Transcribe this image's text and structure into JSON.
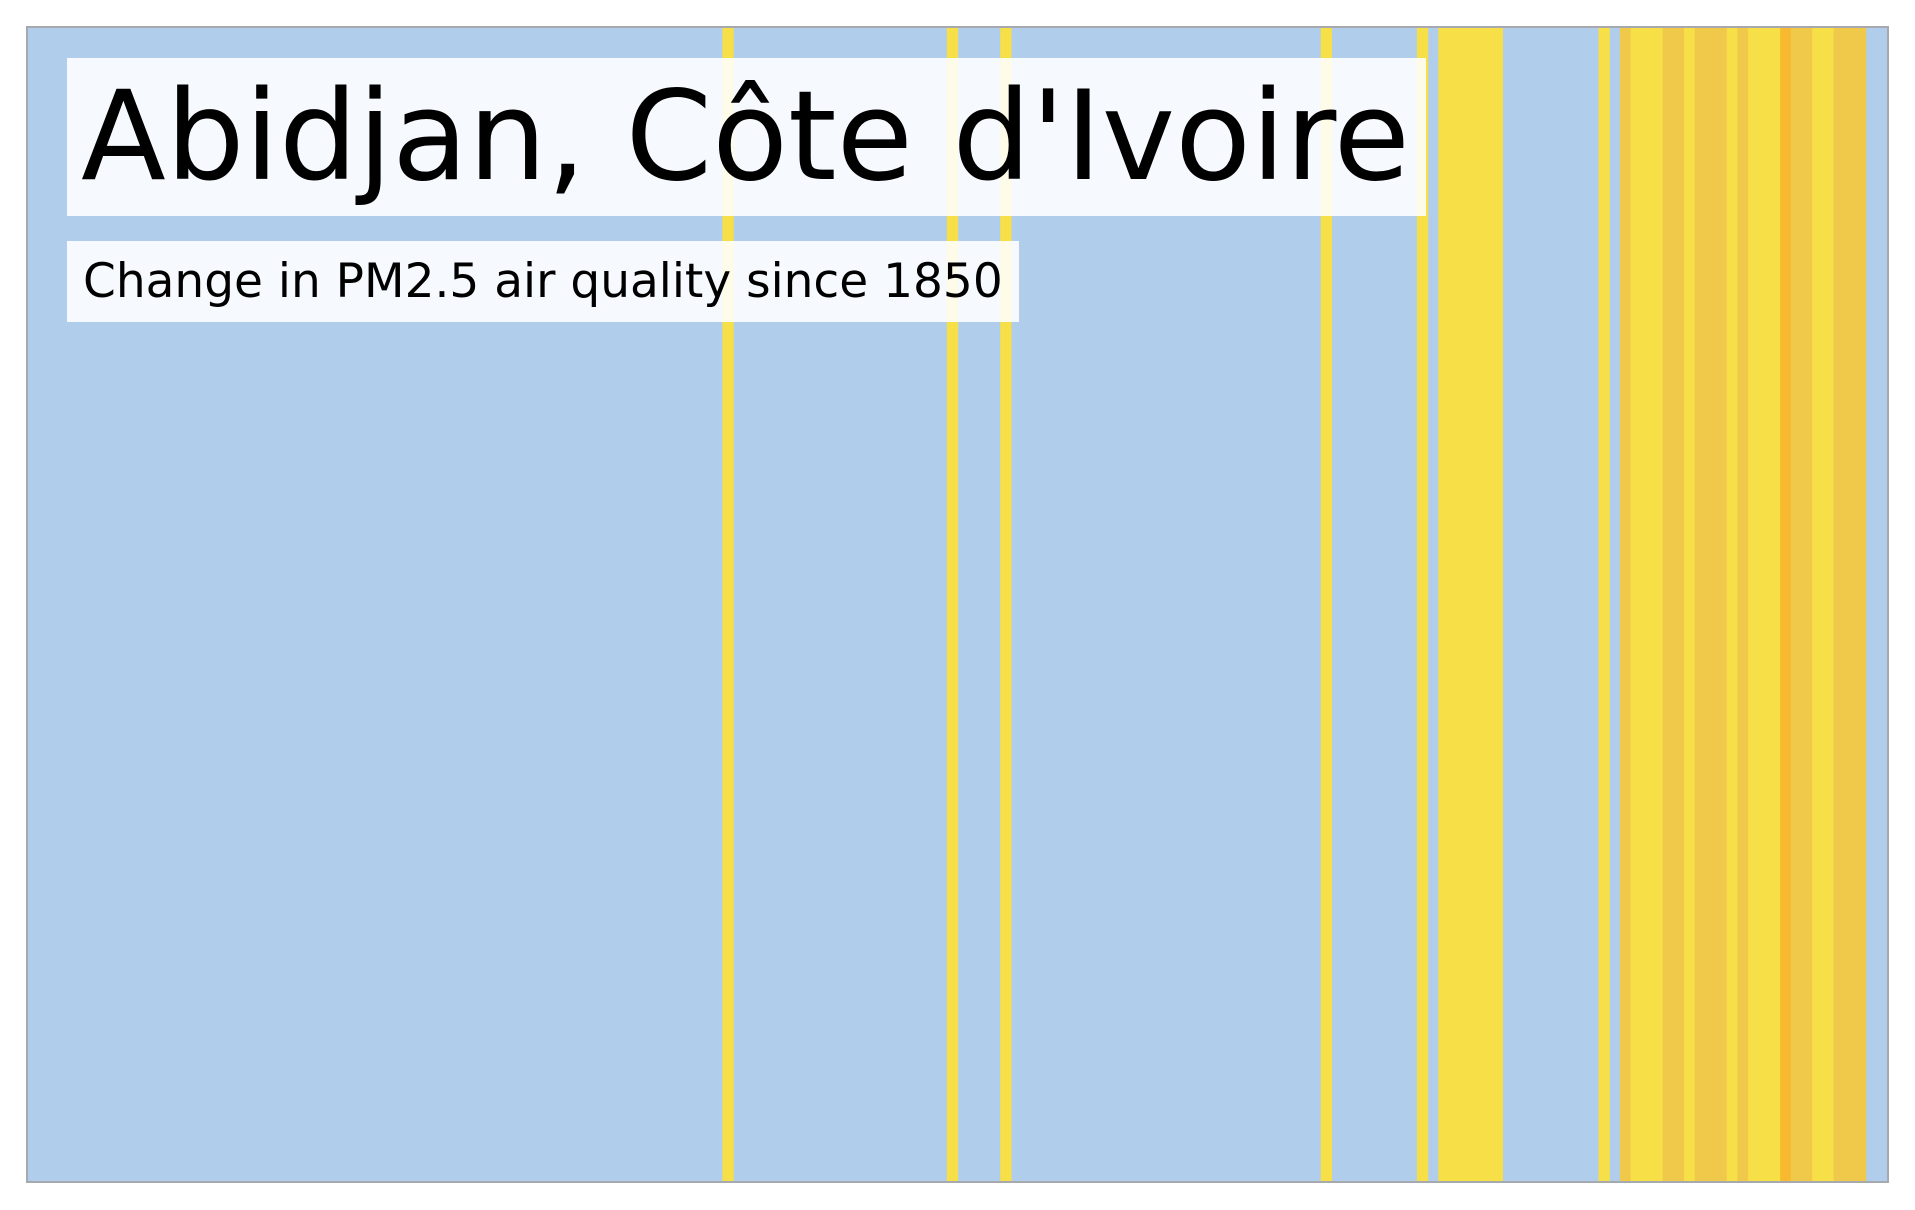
{
  "chart_data": {
    "type": "heatmap",
    "title": "Abidjan, Côte d'Ivoire",
    "subtitle": "Change in PM2.5 air quality since 1850",
    "x_start": 1850,
    "x_end": 2024,
    "colors": {
      "background": "#b0ceec",
      "level_1": "#f7df47",
      "level_2": "#f0c94b",
      "level_3": "#f6b930",
      "frame": "#a6a9ad"
    },
    "stripes": [
      {
        "year": 1915,
        "level": 1
      },
      {
        "year": 1936,
        "level": 1
      },
      {
        "year": 1941,
        "level": 1
      },
      {
        "year": 1971,
        "level": 1
      },
      {
        "year": 1980,
        "level": 1
      },
      {
        "year": 1982,
        "level": 1
      },
      {
        "year": 1983,
        "level": 1
      },
      {
        "year": 1984,
        "level": 1
      },
      {
        "year": 1985,
        "level": 1
      },
      {
        "year": 1986,
        "level": 1
      },
      {
        "year": 1987,
        "level": 1
      },
      {
        "year": 1997,
        "level": 1
      },
      {
        "year": 1999,
        "level": 2
      },
      {
        "year": 2000,
        "level": 1
      },
      {
        "year": 2001,
        "level": 1
      },
      {
        "year": 2002,
        "level": 1
      },
      {
        "year": 2003,
        "level": 2
      },
      {
        "year": 2004,
        "level": 2
      },
      {
        "year": 2005,
        "level": 1
      },
      {
        "year": 2006,
        "level": 2
      },
      {
        "year": 2007,
        "level": 2
      },
      {
        "year": 2008,
        "level": 2
      },
      {
        "year": 2009,
        "level": 1
      },
      {
        "year": 2010,
        "level": 2
      },
      {
        "year": 2011,
        "level": 1
      },
      {
        "year": 2012,
        "level": 1
      },
      {
        "year": 2013,
        "level": 1
      },
      {
        "year": 2014,
        "level": 3
      },
      {
        "year": 2015,
        "level": 2
      },
      {
        "year": 2016,
        "level": 2
      },
      {
        "year": 2017,
        "level": 1
      },
      {
        "year": 2018,
        "level": 1
      },
      {
        "year": 2019,
        "level": 2
      },
      {
        "year": 2020,
        "level": 2
      },
      {
        "year": 2021,
        "level": 2
      }
    ]
  }
}
